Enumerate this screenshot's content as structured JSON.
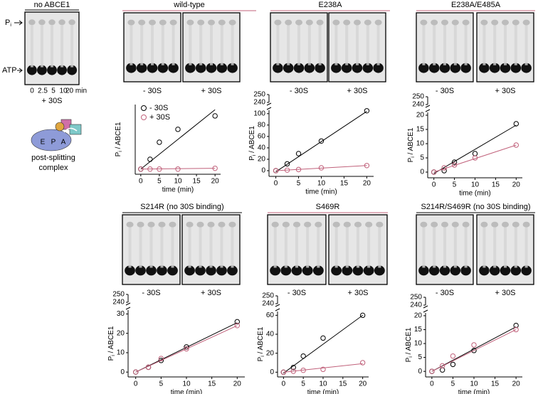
{
  "control": {
    "title": "no ABCE1",
    "pi_label": {
      "main": "P",
      "sub": "i"
    },
    "atp_label": "ATP",
    "lanes": [
      "0",
      "2.5",
      "5",
      "10",
      "20 min"
    ],
    "condition": "+ 30S",
    "condition_color": "#c0607a",
    "diagram": {
      "sites": [
        "E",
        "P",
        "A"
      ],
      "caption": [
        "post-splitting",
        "complex"
      ]
    }
  },
  "chart_data": [
    {
      "type": "scatter",
      "title": "wild-type",
      "title_color": "#c0607a",
      "gel_labels": [
        "- 30S",
        "+ 30S"
      ],
      "gel_label_colors": [
        "#000000",
        "#c0607a"
      ],
      "x": [
        0,
        2.5,
        5,
        10,
        20
      ],
      "xlim": [
        -1.5,
        21.5
      ],
      "xticks": [
        0,
        5,
        10,
        15,
        20
      ],
      "x_label": "time (min)",
      "y_label": {
        "main": "P",
        "sub": "i",
        "rest": " / ABCE1"
      },
      "ylim": [
        -20,
        250
      ],
      "yticks": [],
      "legend": "upper left",
      "fit_x": [
        0,
        20
      ],
      "series": [
        {
          "name": "- 30S",
          "color": "#000000",
          "values": [
            0,
            38,
            104,
            154,
            206
          ],
          "fit": [
            0,
            230
          ]
        },
        {
          "name": "+ 30S",
          "color": "#c0607a",
          "values": [
            0,
            0,
            0,
            0,
            3
          ],
          "fit": [
            0,
            3
          ]
        }
      ]
    },
    {
      "type": "scatter",
      "title": "E238A",
      "title_color": "#c0607a",
      "gel_labels": [
        "- 30S",
        "+ 30S"
      ],
      "gel_label_colors": [
        "#000000",
        "#c0607a"
      ],
      "x": [
        0,
        2.5,
        5,
        10,
        20
      ],
      "xlim": [
        -1.5,
        21.5
      ],
      "xticks": [
        0,
        5,
        10,
        15,
        20
      ],
      "x_label": "time (min)",
      "y_label": {
        "main": "P",
        "sub": "i",
        "rest": " / ABCE1"
      },
      "ylim": [
        -10,
        106
      ],
      "yticks": [
        0,
        20,
        40,
        60,
        80,
        100
      ],
      "break_ylim": [
        240,
        250
      ],
      "break_yticks": [
        240,
        250
      ],
      "fit_x": [
        0,
        20
      ],
      "series": [
        {
          "color": "#000000",
          "values": [
            0,
            12,
            30,
            52,
            105
          ],
          "fit": [
            -2,
            104
          ]
        },
        {
          "color": "#c0607a",
          "values": [
            0,
            1,
            2,
            5,
            9
          ],
          "fit": [
            0,
            9
          ]
        }
      ]
    },
    {
      "type": "scatter",
      "title": "E238A/E485A",
      "title_color": "#c0607a",
      "gel_labels": [
        "- 30S",
        "+ 30S"
      ],
      "gel_label_colors": [
        "#000000",
        "#c0607a"
      ],
      "x": [
        0,
        2.5,
        5,
        10,
        20
      ],
      "xlim": [
        -1.5,
        21.5
      ],
      "xticks": [
        0,
        5,
        10,
        15,
        20
      ],
      "x_label": "time (min)",
      "y_label": {
        "main": "P",
        "sub": "i",
        "rest": " / ABCE1"
      },
      "ylim": [
        -2,
        21
      ],
      "yticks": [
        0,
        5,
        10,
        15,
        20
      ],
      "break_ylim": [
        240,
        250
      ],
      "break_yticks": [
        240,
        250
      ],
      "fit_x": [
        0,
        20
      ],
      "series": [
        {
          "color": "#000000",
          "values": [
            0,
            0.5,
            3.5,
            6.5,
            17
          ],
          "fit": [
            -0.5,
            16.5
          ]
        },
        {
          "color": "#c0607a",
          "values": [
            0,
            1.5,
            2.5,
            5,
            9.5
          ],
          "fit": [
            0,
            9.5
          ]
        }
      ]
    },
    {
      "type": "scatter",
      "title": "S214R (no 30S binding)",
      "title_color": "#000000",
      "gel_labels": [
        "- 30S",
        "+ 30S"
      ],
      "gel_label_colors": [
        "#000000",
        "#c0607a"
      ],
      "x": [
        0,
        2.5,
        5,
        10,
        20
      ],
      "xlim": [
        -1.5,
        21.5
      ],
      "xticks": [
        0,
        5,
        10,
        15,
        20
      ],
      "x_label": "time (min)",
      "y_label": {
        "main": "P",
        "sub": "i",
        "rest": " / ABCE1"
      },
      "ylim": [
        -2.5,
        32
      ],
      "yticks": [
        0,
        10,
        20,
        30
      ],
      "break_ylim": [
        240,
        250
      ],
      "break_yticks": [
        240,
        250
      ],
      "fit_x": [
        0,
        20
      ],
      "series": [
        {
          "color": "#000000",
          "values": [
            0,
            2.5,
            6,
            13,
            26
          ],
          "fit": [
            0,
            25.5
          ]
        },
        {
          "color": "#c0607a",
          "values": [
            0,
            2.5,
            7,
            12,
            24
          ],
          "fit": [
            0,
            24
          ]
        }
      ]
    },
    {
      "type": "scatter",
      "title": "S469R",
      "title_color": "#c0607a",
      "gel_labels": [
        "- 30S",
        "+ 30S"
      ],
      "gel_label_colors": [
        "#000000",
        "#c0607a"
      ],
      "x": [
        0,
        2.5,
        5,
        10,
        20
      ],
      "xlim": [
        -1.5,
        21.5
      ],
      "xticks": [
        0,
        5,
        10,
        15,
        20
      ],
      "x_label": "time (min)",
      "y_label": {
        "main": "P",
        "sub": "i",
        "rest": " / ABCE1"
      },
      "ylim": [
        -5,
        64
      ],
      "yticks": [
        0,
        20,
        40,
        60
      ],
      "break_ylim": [
        240,
        250
      ],
      "break_yticks": [
        240,
        250
      ],
      "fit_x": [
        0,
        20
      ],
      "series": [
        {
          "color": "#000000",
          "values": [
            0,
            5,
            17,
            36,
            60
          ],
          "fit": [
            -1,
            60
          ]
        },
        {
          "color": "#c0607a",
          "values": [
            0,
            1,
            2,
            3,
            10
          ],
          "fit": [
            0,
            9
          ]
        }
      ]
    },
    {
      "type": "scatter",
      "title": "S214R/S469R (no 30S binding)",
      "title_color": "#000000",
      "gel_labels": [
        "- 30S",
        "+ 30S"
      ],
      "gel_label_colors": [
        "#000000",
        "#c0607a"
      ],
      "x": [
        0,
        2.5,
        5,
        10,
        20
      ],
      "xlim": [
        -1.5,
        21.5
      ],
      "xticks": [
        0,
        5,
        10,
        15,
        20
      ],
      "x_label": "time (min)",
      "y_label": {
        "main": "P",
        "sub": "i",
        "rest": " / ABCE1"
      },
      "ylim": [
        -2,
        21
      ],
      "yticks": [
        0,
        5,
        10,
        15,
        20
      ],
      "break_ylim": [
        240,
        250
      ],
      "break_yticks": [
        240,
        250
      ],
      "fit_x": [
        0,
        20
      ],
      "series": [
        {
          "color": "#000000",
          "values": [
            0,
            0.5,
            2.5,
            7.5,
            16.5
          ],
          "fit": [
            0,
            16
          ]
        },
        {
          "color": "#c0607a",
          "values": [
            0,
            2,
            5.5,
            9.5,
            15
          ],
          "fit": [
            0,
            15
          ]
        }
      ]
    }
  ]
}
